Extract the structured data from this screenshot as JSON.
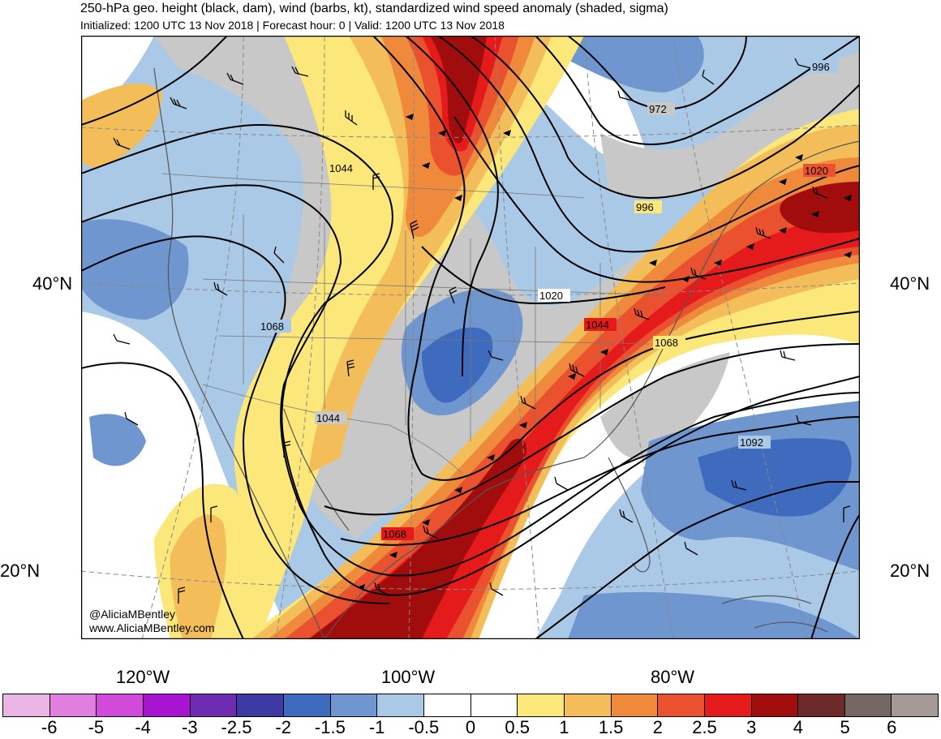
{
  "header": {
    "title": "250-hPa geo. height (black, dam), wind (barbs, kt), standardized wind speed anomaly (shaded, sigma)",
    "subtitle": "Initialized: 1200 UTC 13 Nov 2018 | Forecast hour: 0 | Valid: 1200 UTC 13 Nov 2018"
  },
  "map": {
    "lat_labels": [
      "40°N",
      "20°N"
    ],
    "lon_labels": [
      "120°W",
      "100°W",
      "80°W"
    ],
    "contour_labels": [
      "996",
      "972",
      "1044",
      "1020",
      "996",
      "1020",
      "1068",
      "1044",
      "1068",
      "1044",
      "1092",
      "1068"
    ],
    "credit": [
      "@AliciaMBentley",
      "www.AliciaMBentley.com"
    ]
  },
  "colorbar": {
    "colors": [
      "#ebb6e6",
      "#e07fe0",
      "#d24ad9",
      "#a914d0",
      "#6e2cb3",
      "#3e3aa3",
      "#3e6bbe",
      "#6f96ce",
      "#a9c9e6",
      "#ffffff",
      "#ffffff",
      "#fbe77a",
      "#f3be5a",
      "#ef8a3c",
      "#e9512f",
      "#e51b1b",
      "#a10d0d",
      "#6e2a2a",
      "#756764",
      "#a69a98"
    ],
    "labels": [
      "-6",
      "-5",
      "-4",
      "-3",
      "-2.5",
      "-2",
      "-1.5",
      "-1",
      "-0.5",
      "0",
      "0.5",
      "1",
      "1.5",
      "2",
      "2.5",
      "3",
      "4",
      "5",
      "6"
    ]
  }
}
